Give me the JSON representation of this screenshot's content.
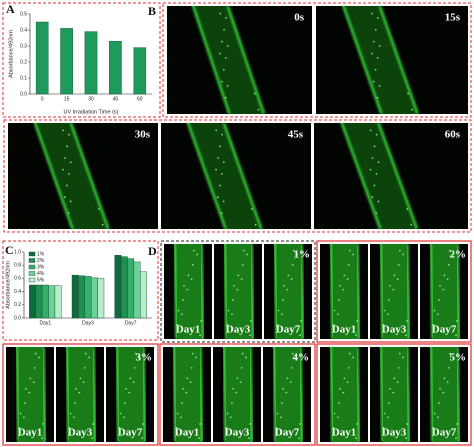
{
  "chart_data": [
    {
      "type": "bar",
      "y_label": "Absorbance/492nm",
      "x_label": "UV Irradiation Time (s)",
      "categories": [
        "0",
        "15",
        "30",
        "45",
        "60"
      ],
      "values": [
        0.45,
        0.41,
        0.39,
        0.33,
        0.29
      ],
      "color": "#1e9a5a",
      "ylim": [
        0,
        0.5
      ],
      "yticks": [
        {
          "value": 0,
          "label": "0.0"
        },
        0.1,
        0.2,
        0.3,
        0.4,
        0.5
      ]
    },
    {
      "type": "bar",
      "y_label": "Absorbance/492nm",
      "categories": [
        "Day1",
        "Day3",
        "Day7"
      ],
      "series": [
        {
          "name": "1%",
          "color": "#0f6b3c",
          "values": [
            0.5,
            0.65,
            0.95
          ]
        },
        {
          "name": "2%",
          "color": "#1f8f52",
          "values": [
            0.5,
            0.64,
            0.93
          ]
        },
        {
          "name": "3%",
          "color": "#35b06a",
          "values": [
            0.5,
            0.63,
            0.9
          ]
        },
        {
          "name": "4%",
          "color": "#6fd197",
          "values": [
            0.49,
            0.61,
            0.85
          ]
        },
        {
          "name": "5%",
          "color": "#b8ecca",
          "values": [
            0.49,
            0.6,
            0.7
          ]
        }
      ],
      "ylim": [
        0,
        1
      ],
      "yticks": [
        {
          "value": 0,
          "label": "0.0"
        },
        0.2,
        0.4,
        0.6,
        0.8,
        {
          "value": 1,
          "label": "1.0"
        }
      ]
    }
  ],
  "panel_labels": [
    "A",
    "B",
    "C",
    "D"
  ],
  "time_images": [
    "0s",
    "15s",
    "30s",
    "45s",
    "60s"
  ],
  "concentration_groups": [
    {
      "label": "1%",
      "days": [
        "Day1",
        "Day3",
        "Day7"
      ]
    },
    {
      "label": "2%",
      "days": [
        "Day1",
        "Day3",
        "Day7"
      ]
    },
    {
      "label": "3%",
      "days": [
        "Day1",
        "Day3",
        "Day7"
      ]
    },
    {
      "label": "4%",
      "days": [
        "Day1",
        "Day3",
        "Day7"
      ]
    },
    {
      "label": "5%",
      "days": [
        "Day1",
        "Day3",
        "Day7"
      ]
    }
  ]
}
